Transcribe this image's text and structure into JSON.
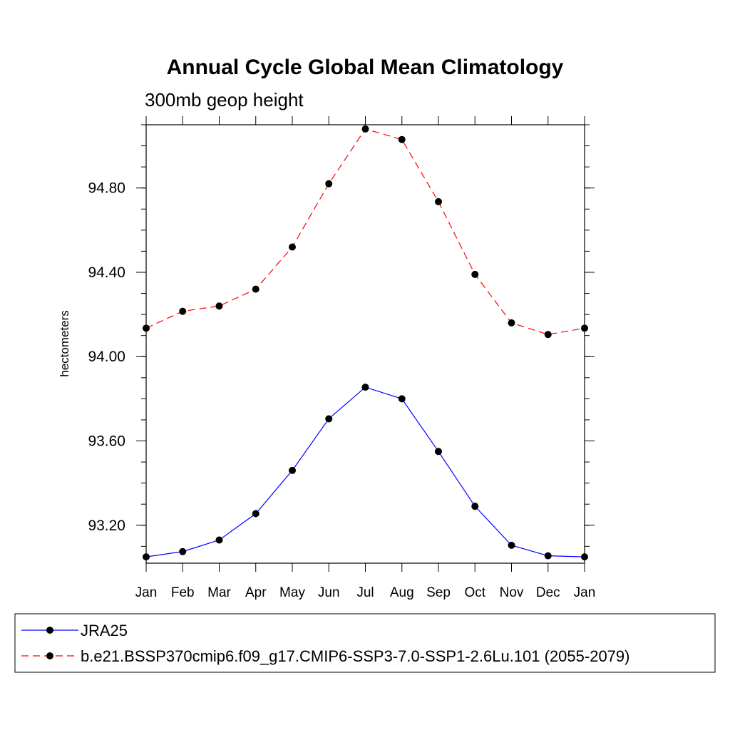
{
  "chart_data": {
    "type": "line",
    "title": "Annual Cycle Global Mean Climatology",
    "subtitle": "300mb geop height",
    "ylabel": "hectometers",
    "xlabel": "",
    "categories": [
      "Jan",
      "Feb",
      "Mar",
      "Apr",
      "May",
      "Jun",
      "Jul",
      "Aug",
      "Sep",
      "Oct",
      "Nov",
      "Dec",
      "Jan"
    ],
    "ylim": [
      93.02,
      95.1
    ],
    "yticks": [
      93.2,
      93.6,
      94.0,
      94.4,
      94.8
    ],
    "ytick_labels": [
      "93.20",
      "93.60",
      "94.00",
      "94.40",
      "94.80"
    ],
    "grid": false,
    "legend_position": "bottom",
    "series": [
      {
        "name": "JRA25",
        "color": "#0000ff",
        "dash": "solid",
        "marker": "filled-circle",
        "values": [
          93.05,
          93.075,
          93.13,
          93.255,
          93.46,
          93.705,
          93.855,
          93.8,
          93.55,
          93.29,
          93.105,
          93.055,
          93.05
        ]
      },
      {
        "name": "b.e21.BSSP370cmip6.f09_g17.CMIP6-SSP3-7.0-SSP1-2.6Lu.101 (2055-2079)",
        "color": "#ff0000",
        "dash": "dashed",
        "marker": "filled-circle",
        "values": [
          94.135,
          94.215,
          94.24,
          94.32,
          94.52,
          94.82,
          95.08,
          95.03,
          94.735,
          94.39,
          94.16,
          94.105,
          94.135
        ]
      }
    ]
  }
}
